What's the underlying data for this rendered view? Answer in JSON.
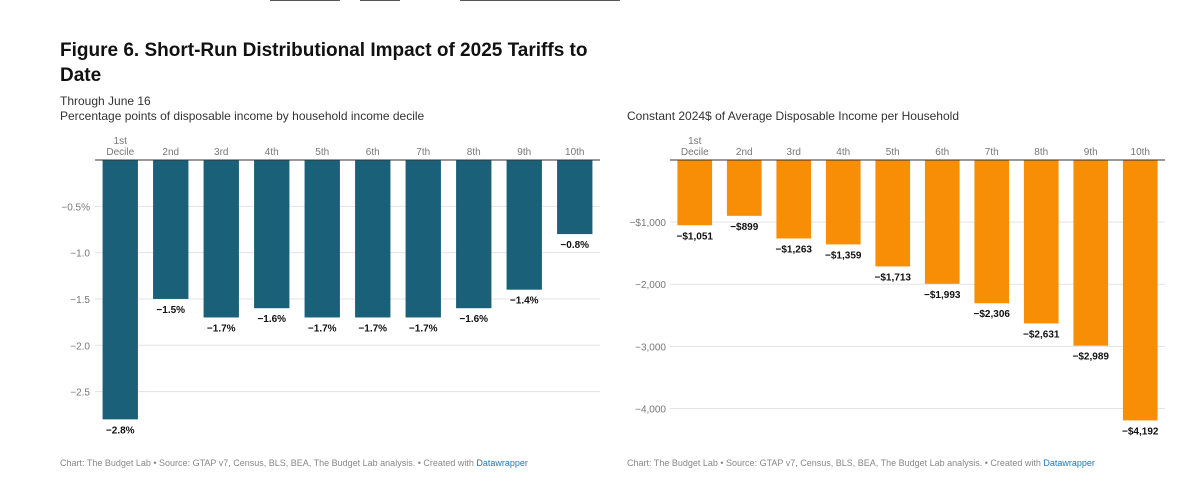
{
  "page": {
    "title": "Figure 6. Short-Run Distributional Impact of 2025 Tariffs to Date",
    "subtitle": "Through June 16"
  },
  "colors": {
    "left_bar": "#1a6079",
    "right_bar": "#f78e06",
    "grid": "#e3e3e3",
    "axis": "#333333"
  },
  "chart_data": [
    {
      "type": "bar",
      "description": "Percentage points of disposable income by household income decile",
      "categories": [
        "1st Decile",
        "2nd",
        "3rd",
        "4th",
        "5th",
        "6th",
        "7th",
        "8th",
        "9th",
        "10th"
      ],
      "values": [
        -2.8,
        -1.5,
        -1.7,
        -1.6,
        -1.7,
        -1.7,
        -1.7,
        -1.6,
        -1.4,
        -0.8
      ],
      "value_labels": [
        "−2.8%",
        "−1.5%",
        "−1.7%",
        "−1.6%",
        "−1.7%",
        "−1.7%",
        "−1.7%",
        "−1.6%",
        "−1.4%",
        "−0.8%"
      ],
      "ylim": [
        -2.85,
        0
      ],
      "yticks": [
        -0.5,
        -1.0,
        -1.5,
        -2.0,
        -2.5
      ],
      "ytick_labels": [
        "−0.5%",
        "−1.0",
        "−1.5",
        "−2.0",
        "−2.5"
      ],
      "grid": true,
      "notes": "Chart: The Budget Lab • Source: GTAP v7, Census, BLS, BEA, The Budget Lab analysis. • Created with",
      "credit": "Datawrapper"
    },
    {
      "type": "bar",
      "description": "Constant 2024$ of Average Disposable Income per Household",
      "categories": [
        "1st Decile",
        "2nd",
        "3rd",
        "4th",
        "5th",
        "6th",
        "7th",
        "8th",
        "9th",
        "10th"
      ],
      "values": [
        -1051,
        -899,
        -1263,
        -1359,
        -1713,
        -1993,
        -2306,
        -2631,
        -2989,
        -4192
      ],
      "value_labels": [
        "−$1,051",
        "−$899",
        "−$1,263",
        "−$1,359",
        "−$1,713",
        "−$1,993",
        "−$2,306",
        "−$2,631",
        "−$2,989",
        "−$4,192"
      ],
      "ylim": [
        -4250,
        0
      ],
      "yticks": [
        -1000,
        -2000,
        -3000,
        -4000
      ],
      "ytick_labels": [
        "−$1,000",
        "−2,000",
        "−3,000",
        "−4,000"
      ],
      "grid": true,
      "notes": "Chart: The Budget Lab • Source: GTAP v7, Census, BLS, BEA, The Budget Lab analysis. • Created with",
      "credit": "Datawrapper"
    }
  ]
}
